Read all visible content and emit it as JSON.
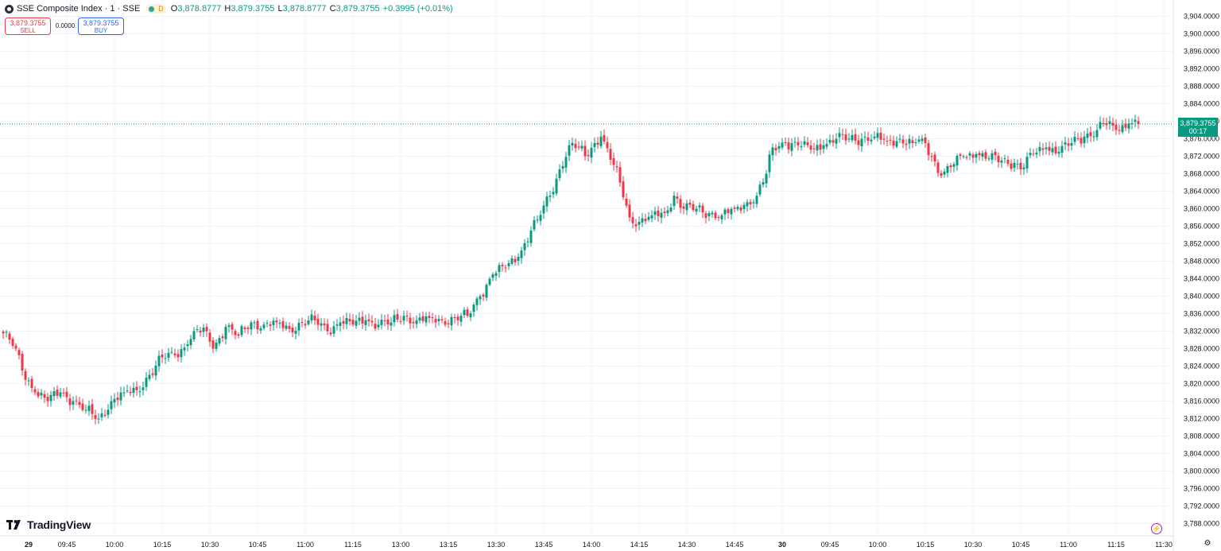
{
  "header": {
    "symbol_title": "SSE Composite Index · 1 · SSE",
    "status_letter": "D",
    "ohlc": [
      {
        "key": "O",
        "value": "3,878.8777"
      },
      {
        "key": "H",
        "value": "3,879.3755"
      },
      {
        "key": "L",
        "value": "3,878.8777"
      },
      {
        "key": "C",
        "value": "3,879.3755"
      }
    ],
    "change": "+0.3995 (+0.01%)"
  },
  "trade": {
    "sell_price": "3,879.3755",
    "sell_label": "SELL",
    "spread": "0.0000",
    "buy_price": "3,879.3755",
    "buy_label": "BUY"
  },
  "last_price": {
    "value": "3,879.3755",
    "countdown": "00:17"
  },
  "branding": {
    "name": "TradingView"
  },
  "icons": {
    "logo": "tradingview-logo-icon",
    "bolt": "lightning-icon",
    "gear": "gear-icon",
    "symbol": "symbol-icon"
  },
  "colors": {
    "up": "#089981",
    "down": "#f23645",
    "grid": "#f0f3fa",
    "last_price_line": "#089981"
  },
  "chart_data": {
    "type": "candlestick",
    "interval": "1 minute",
    "ylim": [
      3786.0,
      3906.0
    ],
    "y_ticks": [
      "3,904.0000",
      "3,900.0000",
      "3,896.0000",
      "3,892.0000",
      "3,888.0000",
      "3,884.0000",
      "3,880.0000",
      "3,876.0000",
      "3,872.0000",
      "3,868.0000",
      "3,864.0000",
      "3,860.0000",
      "3,856.0000",
      "3,852.0000",
      "3,848.0000",
      "3,844.0000",
      "3,840.0000",
      "3,836.0000",
      "3,832.0000",
      "3,828.0000",
      "3,824.0000",
      "3,820.0000",
      "3,816.0000",
      "3,812.0000",
      "3,808.0000",
      "3,804.0000",
      "3,800.0000",
      "3,796.0000",
      "3,792.0000",
      "3,788.0000"
    ],
    "x_ticks": [
      {
        "label": "29",
        "bold": true,
        "bar": 4
      },
      {
        "label": "09:45",
        "bar": 16
      },
      {
        "label": "10:00",
        "bar": 31
      },
      {
        "label": "10:15",
        "bar": 46
      },
      {
        "label": "10:30",
        "bar": 61
      },
      {
        "label": "10:45",
        "bar": 76
      },
      {
        "label": "11:00",
        "bar": 91
      },
      {
        "label": "11:15",
        "bar": 106
      },
      {
        "label": "13:00",
        "bar": 121
      },
      {
        "label": "13:15",
        "bar": 136
      },
      {
        "label": "13:30",
        "bar": 151
      },
      {
        "label": "13:45",
        "bar": 166
      },
      {
        "label": "14:00",
        "bar": 181
      },
      {
        "label": "14:15",
        "bar": 196
      },
      {
        "label": "14:30",
        "bar": 211
      },
      {
        "label": "14:45",
        "bar": 226
      },
      {
        "label": "30",
        "bold": true,
        "bar": 241
      },
      {
        "label": "09:45",
        "bar": 256
      },
      {
        "label": "10:00",
        "bar": 271
      },
      {
        "label": "10:15",
        "bar": 286
      },
      {
        "label": "10:30",
        "bar": 301
      },
      {
        "label": "10:45",
        "bar": 316
      },
      {
        "label": "11:00",
        "bar": 331
      },
      {
        "label": "11:15",
        "bar": 346
      },
      {
        "label": "11:30",
        "bar": 361
      }
    ],
    "last_price": 3879.3755,
    "anchors": [
      [
        0,
        3831.5
      ],
      [
        4,
        3828.0
      ],
      [
        6,
        3823.0
      ],
      [
        10,
        3818.0
      ],
      [
        14,
        3816.0
      ],
      [
        18,
        3818.0
      ],
      [
        22,
        3816.0
      ],
      [
        26,
        3814.0
      ],
      [
        30,
        3812.0
      ],
      [
        34,
        3816.0
      ],
      [
        38,
        3818.0
      ],
      [
        42,
        3818.5
      ],
      [
        46,
        3822.0
      ],
      [
        50,
        3826.0
      ],
      [
        54,
        3826.5
      ],
      [
        58,
        3829.0
      ],
      [
        60,
        3832.0
      ],
      [
        64,
        3832.0
      ],
      [
        66,
        3828.0
      ],
      [
        70,
        3833.0
      ],
      [
        74,
        3831.0
      ],
      [
        78,
        3834.0
      ],
      [
        82,
        3833.5
      ],
      [
        86,
        3834.0
      ],
      [
        90,
        3832.5
      ],
      [
        94,
        3834.0
      ],
      [
        98,
        3834.5
      ],
      [
        102,
        3832.0
      ],
      [
        106,
        3834.0
      ],
      [
        110,
        3833.5
      ],
      [
        114,
        3834.5
      ],
      [
        118,
        3833.5
      ],
      [
        122,
        3834.0
      ],
      [
        126,
        3835.5
      ],
      [
        130,
        3834.5
      ],
      [
        134,
        3835.0
      ],
      [
        138,
        3834.5
      ],
      [
        142,
        3835.0
      ],
      [
        146,
        3835.5
      ],
      [
        150,
        3840.0
      ],
      [
        154,
        3845.0
      ],
      [
        158,
        3846.5
      ],
      [
        162,
        3849.0
      ],
      [
        166,
        3855.0
      ],
      [
        168,
        3857.5
      ],
      [
        172,
        3863.0
      ],
      [
        175,
        3869.0
      ],
      [
        178,
        3874.5
      ],
      [
        181,
        3874.0
      ],
      [
        183,
        3872.0
      ],
      [
        186,
        3875.0
      ],
      [
        188,
        3876.5
      ],
      [
        192,
        3870.0
      ],
      [
        194,
        3866.0
      ],
      [
        197,
        3858.0
      ],
      [
        200,
        3857.0
      ],
      [
        204,
        3858.5
      ],
      [
        208,
        3859.0
      ],
      [
        211,
        3863.0
      ],
      [
        214,
        3860.0
      ],
      [
        218,
        3860.0
      ],
      [
        222,
        3859.0
      ],
      [
        226,
        3858.5
      ],
      [
        230,
        3860.0
      ],
      [
        234,
        3861.5
      ],
      [
        237,
        3863.0
      ],
      [
        240,
        3868.0
      ],
      [
        242,
        3874.0
      ],
      [
        246,
        3875.0
      ],
      [
        250,
        3874.5
      ],
      [
        254,
        3873.5
      ],
      [
        258,
        3874.5
      ],
      [
        262,
        3876.0
      ],
      [
        266,
        3876.0
      ],
      [
        270,
        3876.0
      ],
      [
        274,
        3876.5
      ],
      [
        278,
        3875.5
      ],
      [
        282,
        3876.0
      ],
      [
        286,
        3875.0
      ],
      [
        289,
        3876.0
      ],
      [
        292,
        3872.0
      ],
      [
        295,
        3867.5
      ],
      [
        298,
        3869.5
      ],
      [
        302,
        3872.0
      ],
      [
        306,
        3872.5
      ],
      [
        310,
        3871.5
      ],
      [
        314,
        3871.0
      ],
      [
        318,
        3870.5
      ],
      [
        320,
        3869.0
      ],
      [
        324,
        3872.5
      ],
      [
        328,
        3874.0
      ],
      [
        332,
        3873.0
      ],
      [
        336,
        3875.0
      ],
      [
        340,
        3876.5
      ],
      [
        344,
        3878.0
      ],
      [
        346,
        3879.5
      ],
      [
        350,
        3878.0
      ],
      [
        354,
        3879.5
      ],
      [
        357,
        3879.3755
      ]
    ]
  }
}
